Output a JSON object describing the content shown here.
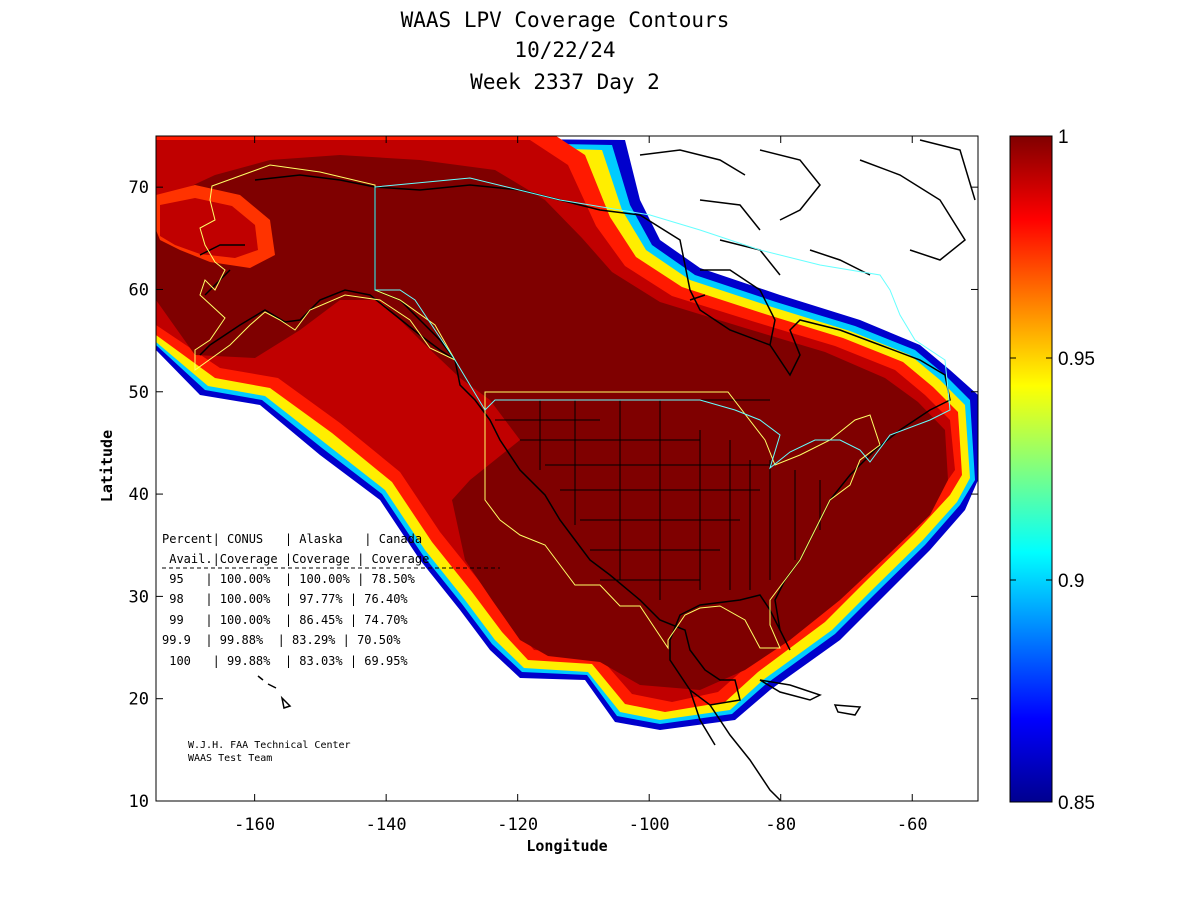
{
  "title": {
    "line1": "WAAS LPV Coverage Contours",
    "line2": "10/22/24",
    "line3": "Week 2337 Day 2"
  },
  "axes": {
    "xlabel": "Longitude",
    "ylabel": "Latitude",
    "x_range": [
      -175,
      -50
    ],
    "y_range": [
      10,
      75
    ],
    "x_ticks": [
      "-160",
      "-140",
      "-120",
      "-100",
      "-80",
      "-60"
    ],
    "y_ticks": [
      "10",
      "20",
      "30",
      "40",
      "50",
      "60",
      "70"
    ]
  },
  "colorbar": {
    "colormap": "jet",
    "range": [
      0.85,
      1
    ],
    "ticks": [
      "1",
      "0.95",
      "0.9",
      "0.85"
    ]
  },
  "table": {
    "header1": [
      "Percent|",
      "CONUS",
      "|",
      "Alaska",
      "|",
      "Canada"
    ],
    "header1_text": "Percent| CONUS   | Alaska   | Canada",
    "header2_text": " Avail.|Coverage |Coverage | Coverage",
    "rows": [
      " 95   | 100.00%  | 100.00% | 78.50%",
      " 98   | 100.00%  | 97.77% | 76.40%",
      " 99   | 100.00%  | 86.45% | 74.70%",
      "99.9  | 99.88%  | 83.29% | 70.50%",
      " 100   | 99.88%  | 83.03% | 69.95%"
    ]
  },
  "credit": {
    "line1": "W.J.H. FAA Technical Center",
    "line2": "WAAS Test Team"
  },
  "colors": {
    "full_coverage": "#7f0000",
    "land_outline": "#000000",
    "service_volume_yellow": "#ffff66",
    "boundary_cyan": "#66ffff"
  }
}
